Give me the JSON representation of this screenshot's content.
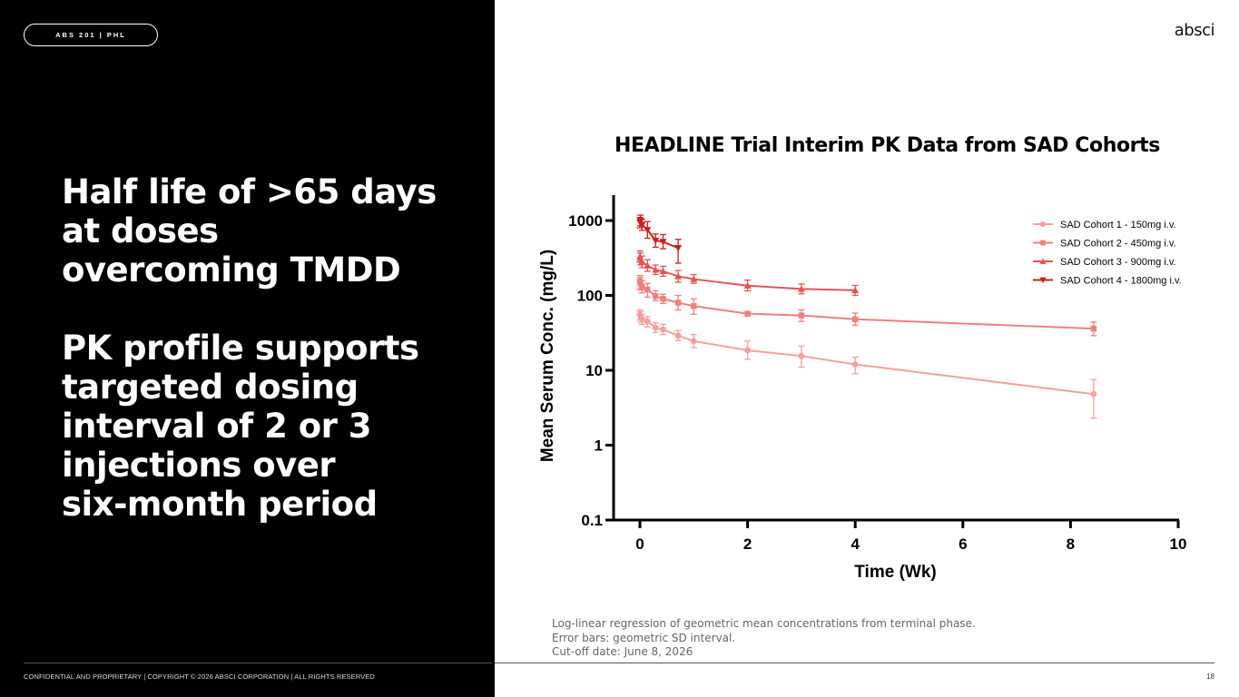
{
  "header": {
    "tag": "ABS 201 | PHL",
    "brand": "absci"
  },
  "headline": {
    "line1": "Half life of >65 days",
    "line2": "at doses",
    "line3": "overcoming TMDD",
    "line4": "PK profile supports",
    "line5": "targeted dosing",
    "line6": "interval of 2 or 3",
    "line7": "injections over",
    "line8": "six-month period"
  },
  "notes": {
    "line1": "Log-linear regression of geometric mean concentrations from terminal phase.",
    "line2": "Error bars: geometric SD interval.",
    "line3": "Cut-off date: June 8, 2026"
  },
  "footer": {
    "text": "CONFIDENTIAL AND PROPRIETARY | COPYRIGHT © 2026 ABSCI CORPORATION | ALL RIGHTS RESERVED",
    "page": "18"
  },
  "chart_data": {
    "type": "line",
    "title": "HEADLINE Trial Interim PK Data from SAD Cohorts",
    "xlabel": "Time (Wk)",
    "ylabel": "Mean Serum Conc. (mg/L)",
    "xlim": [
      0,
      10
    ],
    "ylim": [
      0.1,
      2000
    ],
    "yscale": "log",
    "xticks": [
      0,
      2,
      4,
      6,
      8,
      10
    ],
    "yticks": [
      0.1,
      1,
      10,
      100,
      1000
    ],
    "ytick_labels": [
      "0.1",
      "1",
      "10",
      "100",
      "1000"
    ],
    "legend_position": "top-right",
    "series": [
      {
        "name": "SAD Cohort 1 - 150mg i.v.",
        "color": "#f4a0a0",
        "marker": "circle",
        "x": [
          0,
          0.01,
          0.04,
          0.14,
          0.29,
          0.43,
          0.71,
          1,
          2,
          3,
          4,
          8.43
        ],
        "y": [
          55,
          52,
          48,
          45,
          37,
          35,
          29,
          24.5,
          18.5,
          15.5,
          12,
          4.8
        ],
        "err_low": [
          47,
          44,
          41,
          38,
          32,
          30,
          25,
          20,
          14,
          11,
          9,
          2.3
        ],
        "err_high": [
          64,
          61,
          56,
          52,
          43,
          41,
          34,
          30,
          24.5,
          21,
          15,
          7.5
        ]
      },
      {
        "name": "SAD Cohort 2 - 450mg i.v.",
        "color": "#ef8080",
        "marker": "square",
        "x": [
          0,
          0.01,
          0.04,
          0.14,
          0.29,
          0.43,
          0.71,
          1,
          2,
          3,
          4,
          8.43
        ],
        "y": [
          155,
          145,
          130,
          120,
          98,
          90,
          80,
          72,
          57,
          54,
          48,
          36
        ],
        "err_low": [
          125,
          118,
          108,
          95,
          85,
          78,
          64,
          56,
          53,
          45,
          40,
          29
        ],
        "err_high": [
          185,
          175,
          158,
          145,
          115,
          104,
          100,
          90,
          61,
          64,
          58,
          44
        ]
      },
      {
        "name": "SAD Cohort 3 - 900mg i.v.",
        "color": "#e25555",
        "marker": "triangle-up",
        "x": [
          0,
          0.01,
          0.04,
          0.14,
          0.29,
          0.43,
          0.71,
          1,
          2,
          3,
          4
        ],
        "y": [
          330,
          310,
          280,
          250,
          220,
          210,
          180,
          165,
          135,
          122,
          117
        ],
        "err_low": [
          275,
          255,
          235,
          210,
          190,
          180,
          150,
          145,
          115,
          105,
          100
        ],
        "err_high": [
          395,
          370,
          335,
          300,
          255,
          245,
          215,
          190,
          160,
          142,
          136
        ]
      },
      {
        "name": "SAD Cohort 4 - 1800mg i.v.",
        "color": "#cc1f1f",
        "marker": "triangle-down",
        "x": [
          0,
          0.01,
          0.04,
          0.14,
          0.29,
          0.43,
          0.71
        ],
        "y": [
          950,
          1000,
          880,
          750,
          540,
          520,
          430
        ],
        "err_low": [
          800,
          850,
          740,
          580,
          440,
          420,
          270
        ],
        "err_high": [
          1100,
          1180,
          1040,
          970,
          660,
          650,
          560
        ]
      }
    ]
  }
}
